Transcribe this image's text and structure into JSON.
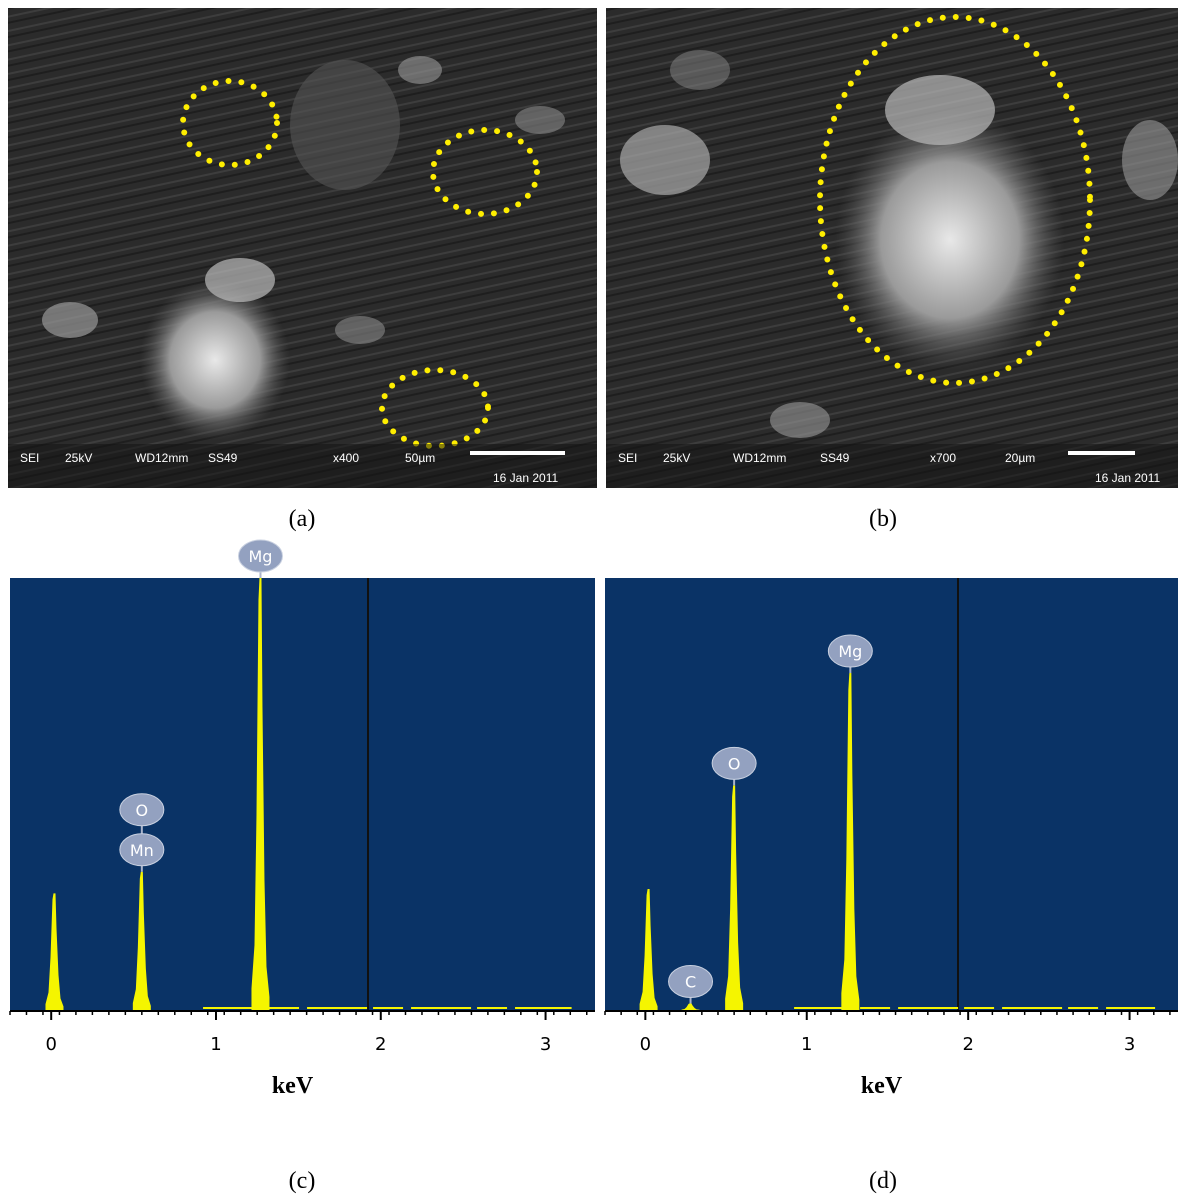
{
  "panels": [
    {
      "caption": "(a)",
      "info": {
        "mode": "SEI",
        "voltage": "25kV",
        "working_distance": "WD12mm",
        "detector": "SS49",
        "magnification": "x400",
        "scale": "50µm",
        "date": "16 Jan 2011"
      }
    },
    {
      "caption": "(b)",
      "info": {
        "mode": "SEI",
        "voltage": "25kV",
        "working_distance": "WD12mm",
        "detector": "SS49",
        "magnification": "x700",
        "scale": "20µm",
        "date": "16 Jan 2011"
      }
    }
  ],
  "chart_data": [
    {
      "type": "spectrum",
      "caption": "(c)",
      "xlabel": "keV",
      "xlim": [
        -0.25,
        3.3
      ],
      "xticks": [
        0,
        1,
        2,
        3
      ],
      "ylim": [
        0,
        100
      ],
      "color": "#f5f500",
      "x": [
        0.02,
        0.55,
        1.27
      ],
      "values": [
        27,
        32,
        100
      ],
      "labels": [
        null,
        [
          "O",
          "Mn"
        ],
        [
          "Mg"
        ]
      ]
    },
    {
      "type": "spectrum",
      "caption": "(d)",
      "xlabel": "keV",
      "xlim": [
        -0.25,
        3.3
      ],
      "xticks": [
        0,
        1,
        2,
        3
      ],
      "ylim": [
        0,
        100
      ],
      "color": "#f5f500",
      "x": [
        0.02,
        0.28,
        0.55,
        1.27
      ],
      "values": [
        28,
        1.5,
        52,
        78
      ],
      "labels": [
        null,
        [
          "C"
        ],
        [
          "O"
        ],
        [
          "Mg"
        ]
      ]
    }
  ]
}
